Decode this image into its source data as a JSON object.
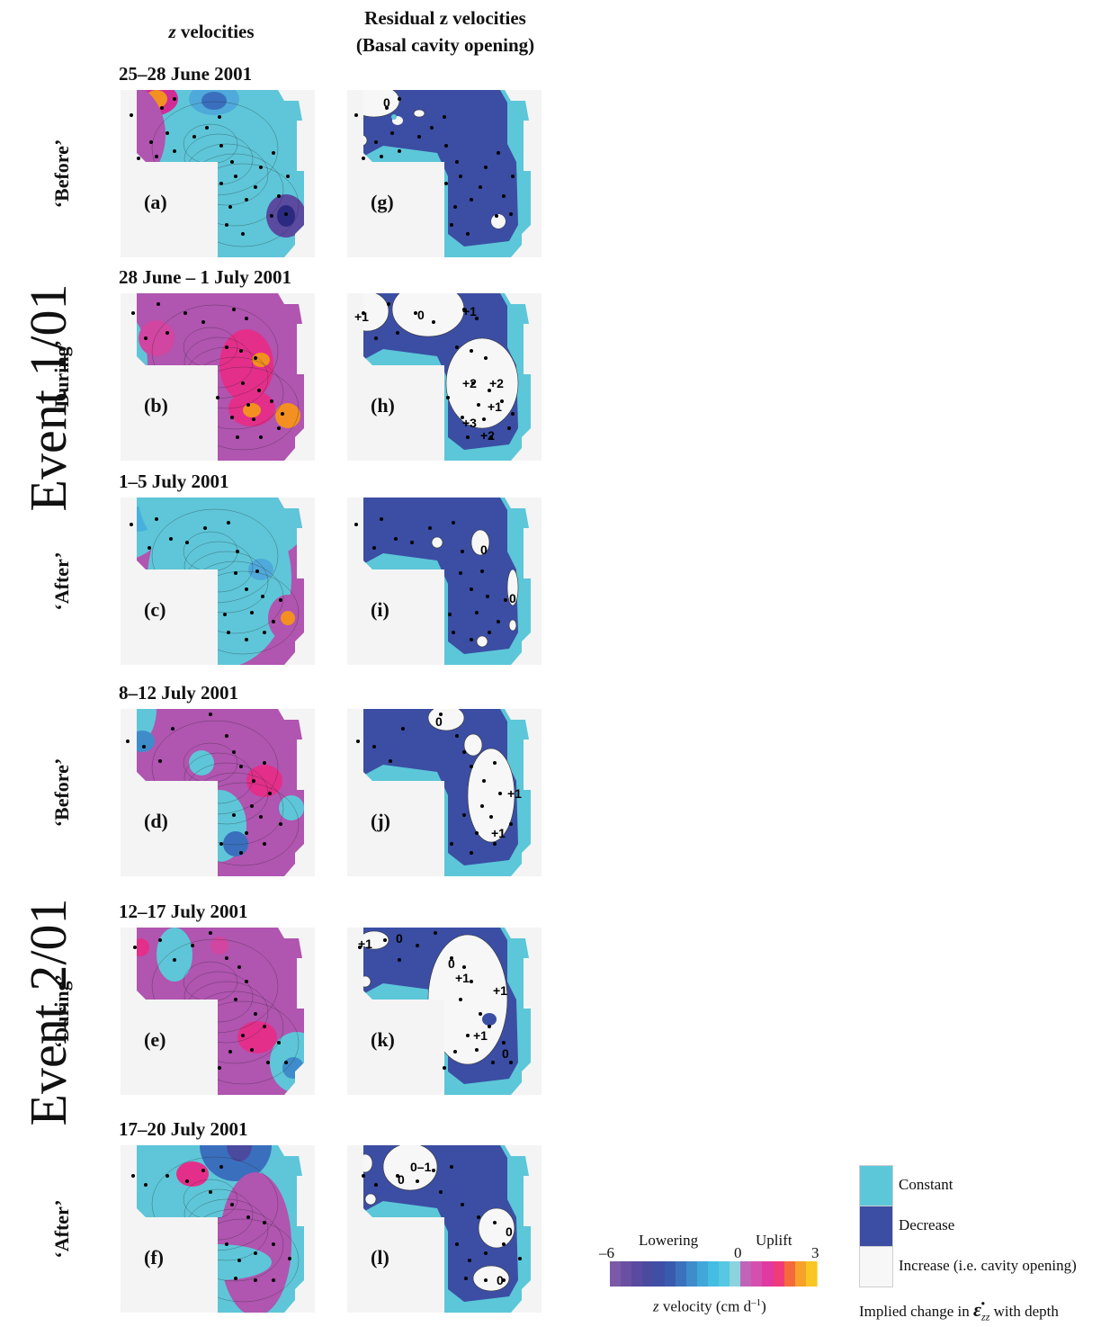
{
  "columns": {
    "left_title": "z velocities",
    "right_title_line1": "Residual z velocities",
    "right_title_line2": "(Basal cavity opening)"
  },
  "events": [
    "Event 1/01",
    "Event 2/01"
  ],
  "rows": [
    {
      "date": "25–28 June 2001",
      "phase": "‘Before’",
      "left_label": "(a)",
      "right_label": "(g)",
      "residual_numbers": [
        "0"
      ]
    },
    {
      "date": "28 June – 1 July 2001",
      "phase": "‘During’",
      "left_label": "(b)",
      "right_label": "(h)",
      "residual_numbers": [
        "+1",
        "0",
        "+1",
        "+2",
        "+2",
        "+1",
        "+3",
        "+2"
      ]
    },
    {
      "date": "1–5 July 2001",
      "phase": "‘After’",
      "left_label": "(c)",
      "right_label": "(i)",
      "residual_numbers": [
        "0",
        "0"
      ]
    },
    {
      "date": "8–12 July 2001",
      "phase": "‘Before’",
      "left_label": "(d)",
      "right_label": "(j)",
      "residual_numbers": [
        "0",
        "+1",
        "+1"
      ]
    },
    {
      "date": "12–17 July 2001",
      "phase": "‘During’",
      "left_label": "(e)",
      "right_label": "(k)",
      "residual_numbers": [
        "+1",
        "0",
        "0",
        "+1",
        "+1",
        "+1",
        "0"
      ]
    },
    {
      "date": "17–20 July 2001",
      "phase": "‘After’",
      "left_label": "(f)",
      "right_label": "(l)",
      "residual_numbers": [
        "0–1",
        "0",
        "0",
        "0"
      ]
    }
  ],
  "colorbar": {
    "min_label": "–6",
    "zero_label": "0",
    "max_label": "3",
    "lowering": "Lowering",
    "uplift": "Uplift",
    "caption": "z velocity (cm d",
    "caption_exp": "–1",
    "caption_end": ")",
    "colors": [
      "#7a5aa8",
      "#6a4fa3",
      "#5a4aa0",
      "#4a4a9e",
      "#3f4fa5",
      "#3a5aae",
      "#3c72bd",
      "#3f8ccb",
      "#40a7d9",
      "#44bde3",
      "#56c8e2",
      "#8bd3df",
      "#c164b8",
      "#d44fae",
      "#e0399f",
      "#ef3b7a",
      "#f46a3a",
      "#f7a12a",
      "#f9c623"
    ]
  },
  "legend": {
    "constant": "Constant",
    "decrease": "Decrease",
    "increase": "Increase (i.e. cavity opening)",
    "caption_pre": "Implied change in ",
    "caption_sym": "ε̇",
    "caption_sub": "zz",
    "caption_post": " with depth",
    "constant_color": "#5cc7d8",
    "decrease_color": "#3b4ea3",
    "increase_color": "#f7f7f7"
  }
}
